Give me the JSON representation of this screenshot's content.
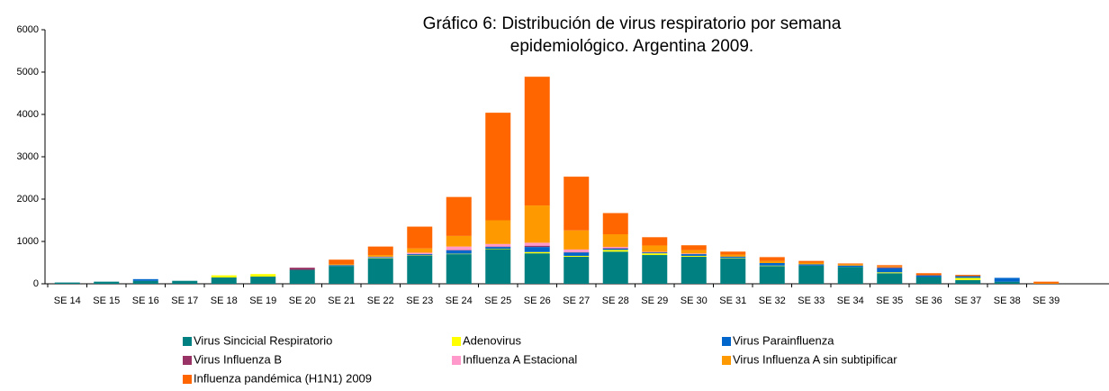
{
  "chart_data": {
    "type": "stacked_bar",
    "title": [
      "Gráfico 6: Distribución de virus respiratorio por semana",
      "epidemiológico.  Argentina 2009."
    ],
    "categories": [
      "SE 14",
      "SE 15",
      "SE 16",
      "SE 17",
      "SE 18",
      "SE 19",
      "SE 20",
      "SE 21",
      "SE 22",
      "SE 23",
      "SE 24",
      "SE 25",
      "SE 26",
      "SE 27",
      "SE 28",
      "SE 29",
      "SE 30",
      "SE 31",
      "SE 32",
      "SE 33",
      "SE 34",
      "SE 35",
      "SE 36",
      "SE 37",
      "SE 38",
      "SE 39"
    ],
    "series": [
      {
        "name": "Virus Sincicial Respiratorio",
        "color": "#008080",
        "values": [
          30,
          50,
          70,
          70,
          150,
          170,
          330,
          420,
          600,
          660,
          700,
          820,
          720,
          640,
          760,
          680,
          640,
          600,
          420,
          430,
          400,
          250,
          160,
          90,
          50,
          0
        ]
      },
      {
        "name": "Adenovirus",
        "color": "#ffff00",
        "values": [
          0,
          0,
          0,
          0,
          50,
          60,
          0,
          0,
          10,
          10,
          10,
          10,
          30,
          20,
          40,
          40,
          20,
          10,
          10,
          0,
          0,
          20,
          0,
          50,
          0,
          0
        ]
      },
      {
        "name": "Virus Parainfluenza",
        "color": "#0066cc",
        "values": [
          0,
          0,
          40,
          0,
          0,
          0,
          0,
          20,
          20,
          30,
          80,
          40,
          120,
          80,
          30,
          20,
          40,
          30,
          60,
          30,
          30,
          100,
          40,
          40,
          90,
          0
        ]
      },
      {
        "name": "Virus Influenza B",
        "color": "#993366",
        "values": [
          0,
          0,
          0,
          0,
          0,
          0,
          50,
          0,
          0,
          5,
          10,
          10,
          30,
          10,
          10,
          5,
          5,
          0,
          0,
          0,
          0,
          20,
          0,
          0,
          0,
          0
        ]
      },
      {
        "name": "Influenza A Estacional",
        "color": "#ff99cc",
        "values": [
          0,
          0,
          0,
          0,
          0,
          0,
          0,
          0,
          10,
          30,
          80,
          60,
          70,
          60,
          30,
          10,
          10,
          0,
          0,
          0,
          0,
          0,
          0,
          0,
          0,
          0
        ]
      },
      {
        "name": "Virus Influenza A sin subtipificar",
        "color": "#ff9900",
        "values": [
          0,
          0,
          0,
          0,
          0,
          0,
          0,
          20,
          40,
          100,
          250,
          560,
          880,
          450,
          300,
          150,
          80,
          50,
          50,
          40,
          30,
          20,
          0,
          0,
          0,
          10
        ]
      },
      {
        "name": "Influenza pandémica (H1N1) 2009",
        "color": "#ff6600",
        "values": [
          0,
          0,
          0,
          0,
          0,
          0,
          0,
          110,
          200,
          515,
          920,
          2540,
          3040,
          1270,
          500,
          195,
          115,
          70,
          90,
          40,
          20,
          30,
          50,
          30,
          0,
          40
        ]
      }
    ],
    "ylim": [
      0,
      6000
    ],
    "yticks": [
      0,
      1000,
      2000,
      3000,
      4000,
      5000,
      6000
    ]
  }
}
